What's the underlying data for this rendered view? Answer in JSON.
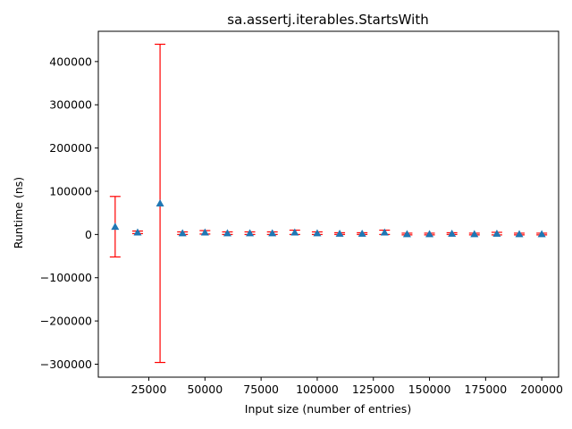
{
  "chart_data": {
    "type": "scatter",
    "title": "sa.assertj.iterables.StartsWith",
    "xlabel": "Input size (number of entries)",
    "ylabel": "Runtime (ns)",
    "xlim": [
      2500,
      207500
    ],
    "ylim": [
      -330000,
      470000
    ],
    "xticks": [
      25000,
      50000,
      75000,
      100000,
      125000,
      150000,
      175000,
      200000
    ],
    "xtick_labels": [
      "25000",
      "50000",
      "75000",
      "100000",
      "125000",
      "150000",
      "175000",
      "200000"
    ],
    "yticks": [
      -300000,
      -200000,
      -100000,
      0,
      100000,
      200000,
      300000,
      400000
    ],
    "ytick_labels": [
      "−300000",
      "−200000",
      "−100000",
      "0",
      "100000",
      "200000",
      "300000",
      "400000"
    ],
    "grid": false,
    "marker_color": "#1f77b4",
    "errorbar_color": "#ff0000",
    "series": [
      {
        "marker": "triangle",
        "x": [
          10000,
          20000,
          30000,
          40000,
          50000,
          60000,
          70000,
          80000,
          90000,
          100000,
          110000,
          120000,
          130000,
          140000,
          150000,
          160000,
          170000,
          180000,
          190000,
          200000
        ],
        "y": [
          18000,
          5000,
          72000,
          3000,
          5000,
          3000,
          3000,
          3000,
          5000,
          3000,
          2000,
          2000,
          5000,
          1000,
          1000,
          2000,
          1000,
          2000,
          1000,
          1000
        ],
        "err": [
          70000,
          3000,
          368000,
          3000,
          4000,
          3000,
          3000,
          3000,
          5000,
          3000,
          2000,
          2000,
          5000,
          2000,
          2000,
          2000,
          2000,
          3000,
          2000,
          2000
        ]
      }
    ]
  }
}
